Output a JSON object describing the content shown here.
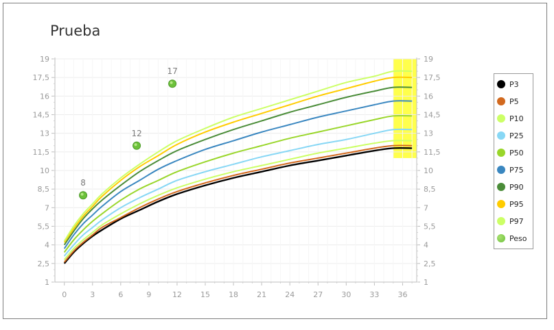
{
  "chart_data": {
    "type": "line",
    "title": "Prueba",
    "xlabel": "",
    "ylabel": "",
    "xlim": [
      -1,
      37.5
    ],
    "ylim": [
      1,
      19
    ],
    "x_ticks": [
      "0",
      "3",
      "6",
      "9",
      "12",
      "15",
      "18",
      "21",
      "24",
      "27",
      "30",
      "33",
      "36"
    ],
    "y_ticks": [
      "1",
      "2,5",
      "4",
      "5,5",
      "7",
      "8,5",
      "10",
      "11,5",
      "13",
      "14,5",
      "16",
      "17,5",
      "19"
    ],
    "x_tick_values": [
      0,
      3,
      6,
      9,
      12,
      15,
      18,
      21,
      24,
      27,
      30,
      33,
      36
    ],
    "y_tick_values": [
      1,
      2.5,
      4,
      5.5,
      7,
      8.5,
      10,
      11.5,
      13,
      14.5,
      16,
      17.5,
      19
    ],
    "x": [
      0,
      1,
      2,
      3,
      4,
      6,
      8,
      10,
      12,
      15,
      18,
      21,
      24,
      27,
      30,
      33,
      35,
      37
    ],
    "series": [
      {
        "name": "P3",
        "color": "#000000",
        "values": [
          2.5,
          3.4,
          4.1,
          4.7,
          5.2,
          6.1,
          6.8,
          7.5,
          8.1,
          8.8,
          9.4,
          9.9,
          10.4,
          10.8,
          11.2,
          11.6,
          11.8,
          11.8
        ]
      },
      {
        "name": "P5",
        "color": "#d2691e",
        "values": [
          2.6,
          3.5,
          4.2,
          4.8,
          5.4,
          6.2,
          7.0,
          7.7,
          8.3,
          9.0,
          9.6,
          10.1,
          10.6,
          11.0,
          11.4,
          11.8,
          12.0,
          12.0
        ]
      },
      {
        "name": "P10",
        "color": "#ccff66",
        "values": [
          2.8,
          3.7,
          4.4,
          5.0,
          5.6,
          6.5,
          7.3,
          8.0,
          8.6,
          9.3,
          9.9,
          10.4,
          10.9,
          11.4,
          11.8,
          12.2,
          12.4,
          12.4
        ]
      },
      {
        "name": "P25",
        "color": "#87d7f5",
        "values": [
          3.1,
          4.0,
          4.8,
          5.4,
          6.0,
          7.0,
          7.8,
          8.5,
          9.2,
          9.9,
          10.5,
          11.1,
          11.6,
          12.1,
          12.5,
          13.0,
          13.3,
          13.3
        ]
      },
      {
        "name": "P50",
        "color": "#99d62a",
        "values": [
          3.4,
          4.4,
          5.2,
          5.9,
          6.5,
          7.6,
          8.5,
          9.2,
          9.9,
          10.7,
          11.4,
          12.0,
          12.6,
          13.1,
          13.6,
          14.1,
          14.4,
          14.4
        ]
      },
      {
        "name": "P75",
        "color": "#3a87c0",
        "values": [
          3.7,
          4.8,
          5.7,
          6.4,
          7.1,
          8.3,
          9.2,
          10.1,
          10.8,
          11.7,
          12.4,
          13.1,
          13.7,
          14.3,
          14.8,
          15.3,
          15.6,
          15.6
        ]
      },
      {
        "name": "P90",
        "color": "#4a8c38",
        "values": [
          4.0,
          5.1,
          6.1,
          6.9,
          7.6,
          8.8,
          9.9,
          10.8,
          11.6,
          12.5,
          13.3,
          14.0,
          14.7,
          15.3,
          15.9,
          16.4,
          16.7,
          16.7
        ]
      },
      {
        "name": "P95",
        "color": "#ffcc00",
        "values": [
          4.2,
          5.3,
          6.3,
          7.1,
          7.9,
          9.2,
          10.3,
          11.2,
          12.1,
          13.1,
          13.9,
          14.6,
          15.3,
          16.0,
          16.6,
          17.2,
          17.5,
          17.5
        ]
      },
      {
        "name": "P97",
        "color": "#ccff66",
        "values": [
          4.3,
          5.5,
          6.5,
          7.3,
          8.1,
          9.4,
          10.5,
          11.5,
          12.4,
          13.4,
          14.3,
          15.0,
          15.7,
          16.4,
          17.1,
          17.6,
          18.0,
          18.0
        ]
      }
    ],
    "points": {
      "name": "Peso",
      "color": "#6cc13a",
      "x": [
        2,
        7.7,
        11.5
      ],
      "y": [
        8,
        12,
        17
      ],
      "labels": [
        "8",
        "12",
        "17"
      ]
    },
    "highlight": {
      "x_range": [
        35,
        37.5
      ],
      "y_range": [
        11,
        19
      ],
      "color": "#ffff00"
    },
    "grid": true,
    "legend_position": "right"
  },
  "legend": {
    "items": [
      {
        "label": "P3",
        "color": "#000000"
      },
      {
        "label": "P5",
        "color": "#d2691e"
      },
      {
        "label": "P10",
        "color": "#ccff66"
      },
      {
        "label": "P25",
        "color": "#87d7f5"
      },
      {
        "label": "P50",
        "color": "#99d62a"
      },
      {
        "label": "P75",
        "color": "#3a87c0"
      },
      {
        "label": "P90",
        "color": "#4a8c38"
      },
      {
        "label": "P95",
        "color": "#ffcc00"
      },
      {
        "label": "P97",
        "color": "#ccff66"
      },
      {
        "label": "Peso",
        "color": "#6cc13a"
      }
    ]
  }
}
